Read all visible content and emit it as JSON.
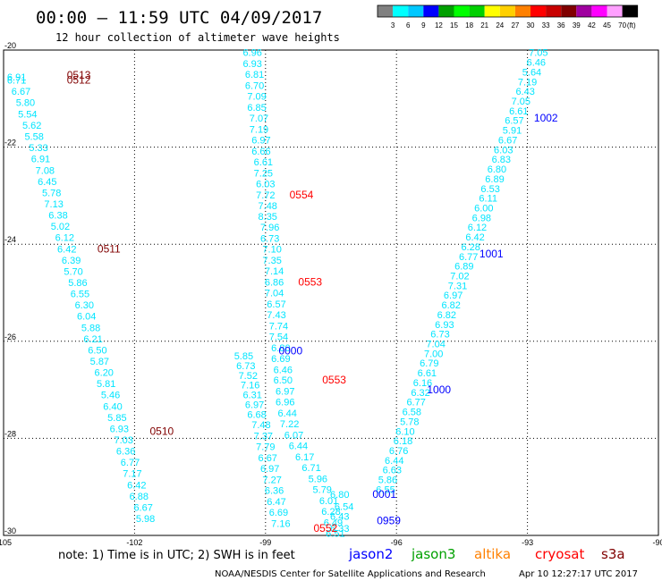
{
  "header": {
    "title": "00:00 – 11:59 UTC 04/09/2017",
    "subtitle": "12 hour collection of altimeter wave heights"
  },
  "colorbar": {
    "unit": "(ft)",
    "labels": [
      "3",
      "6",
      "9",
      "12",
      "15",
      "18",
      "21",
      "24",
      "27",
      "30",
      "33",
      "36",
      "39",
      "42",
      "45",
      "70"
    ],
    "colors": [
      "#808080",
      "#00ffff",
      "#00c8ff",
      "#0000ff",
      "#00a000",
      "#00ff00",
      "#00d000",
      "#ffff00",
      "#ffd000",
      "#ff8000",
      "#ff0000",
      "#c80000",
      "#800000",
      "#a000a0",
      "#ff00ff",
      "#ffa0ff",
      "#000000"
    ]
  },
  "footer": {
    "note": "note:  1) Time is in UTC;  2) SWH is in feet",
    "missions": [
      {
        "name": "jason2",
        "color": "#0000ff"
      },
      {
        "name": "jason3",
        "color": "#00a000"
      },
      {
        "name": "altika",
        "color": "#ff8000"
      },
      {
        "name": "cryosat",
        "color": "#ff0000"
      },
      {
        "name": "s3a",
        "color": "#800000"
      }
    ],
    "credit": "NOAA/NESDIS Center for Satellite Applications and Research",
    "timestamp": "Apr 10 12:27:17 UTC 2017"
  },
  "chart_data": {
    "type": "scatter",
    "xlim": [
      -105,
      -90
    ],
    "ylim": [
      -30,
      -20
    ],
    "xticks": [
      "-105",
      "-102",
      "-99",
      "-96",
      "-93",
      "-90"
    ],
    "yticks": [
      "-20",
      "-22",
      "-24",
      "-26",
      "-28",
      "-30"
    ],
    "grid": true,
    "point_color": "#00e5ff",
    "tracks": [
      {
        "points": [
          {
            "x": -104.7,
            "y": -20.55,
            "v": "6.91"
          },
          {
            "x": -104.7,
            "y": -20.62,
            "v": "6.71"
          },
          {
            "x": -104.6,
            "y": -20.85,
            "v": "6.67"
          },
          {
            "x": -104.5,
            "y": -21.08,
            "v": "5.80"
          },
          {
            "x": -104.45,
            "y": -21.32,
            "v": "5.54"
          },
          {
            "x": -104.35,
            "y": -21.55,
            "v": "5.62"
          },
          {
            "x": -104.3,
            "y": -21.78,
            "v": "5.58"
          },
          {
            "x": -104.2,
            "y": -22.01,
            "v": "5.33"
          },
          {
            "x": -104.15,
            "y": -22.24,
            "v": "6.91"
          },
          {
            "x": -104.05,
            "y": -22.48,
            "v": "7.08"
          },
          {
            "x": -104.0,
            "y": -22.71,
            "v": "6.45"
          },
          {
            "x": -103.9,
            "y": -22.94,
            "v": "5.78"
          },
          {
            "x": -103.85,
            "y": -23.17,
            "v": "7.13"
          },
          {
            "x": -103.75,
            "y": -23.4,
            "v": "6.38"
          },
          {
            "x": -103.7,
            "y": -23.63,
            "v": "5.02"
          },
          {
            "x": -103.6,
            "y": -23.86,
            "v": "6.12"
          },
          {
            "x": -103.55,
            "y": -24.1,
            "v": "6.42"
          },
          {
            "x": -103.45,
            "y": -24.33,
            "v": "6.39"
          },
          {
            "x": -103.4,
            "y": -24.56,
            "v": "5.70"
          },
          {
            "x": -103.3,
            "y": -24.79,
            "v": "5.86"
          },
          {
            "x": -103.25,
            "y": -25.02,
            "v": "6.55"
          },
          {
            "x": -103.15,
            "y": -25.25,
            "v": "6.30"
          },
          {
            "x": -103.1,
            "y": -25.48,
            "v": "6.04"
          },
          {
            "x": -103.0,
            "y": -25.72,
            "v": "5.88"
          },
          {
            "x": -102.95,
            "y": -25.95,
            "v": "6.21"
          },
          {
            "x": -102.85,
            "y": -26.18,
            "v": "6.50"
          },
          {
            "x": -102.8,
            "y": -26.41,
            "v": "5.87"
          },
          {
            "x": -102.7,
            "y": -26.64,
            "v": "6.20"
          },
          {
            "x": -102.65,
            "y": -26.87,
            "v": "5.81"
          },
          {
            "x": -102.55,
            "y": -27.1,
            "v": "5.46"
          },
          {
            "x": -102.5,
            "y": -27.34,
            "v": "6.40"
          },
          {
            "x": -102.4,
            "y": -27.57,
            "v": "5.85"
          },
          {
            "x": -102.35,
            "y": -27.8,
            "v": "6.93"
          },
          {
            "x": -102.25,
            "y": -28.03,
            "v": "7.03"
          },
          {
            "x": -102.2,
            "y": -28.26,
            "v": "6.36"
          },
          {
            "x": -102.1,
            "y": -28.49,
            "v": "6.77"
          },
          {
            "x": -102.05,
            "y": -28.72,
            "v": "7.17"
          },
          {
            "x": -101.95,
            "y": -28.96,
            "v": "6.42"
          },
          {
            "x": -101.9,
            "y": -29.19,
            "v": "6.88"
          },
          {
            "x": -101.8,
            "y": -29.42,
            "v": "6.67"
          },
          {
            "x": -101.75,
            "y": -29.65,
            "v": "5.98"
          }
        ],
        "time_labels": [
          {
            "x": -103.55,
            "y": -20.52,
            "t": "0513",
            "color": "#800000"
          },
          {
            "x": -103.55,
            "y": -20.62,
            "t": "0512",
            "color": "#800000"
          },
          {
            "x": -102.85,
            "y": -24.1,
            "t": "0511",
            "color": "#800000"
          },
          {
            "x": -101.65,
            "y": -27.85,
            "t": "0510",
            "color": "#800000"
          }
        ]
      },
      {
        "points": [
          {
            "x": -99.3,
            "y": -20.05,
            "v": "6.96"
          },
          {
            "x": -99.3,
            "y": -20.28,
            "v": "6.93"
          },
          {
            "x": -99.25,
            "y": -20.5,
            "v": "6.81"
          },
          {
            "x": -99.25,
            "y": -20.73,
            "v": "6.70"
          },
          {
            "x": -99.2,
            "y": -20.95,
            "v": "7.09"
          },
          {
            "x": -99.2,
            "y": -21.18,
            "v": "6.85"
          },
          {
            "x": -99.15,
            "y": -21.4,
            "v": "7.07"
          },
          {
            "x": -99.15,
            "y": -21.63,
            "v": "7.19"
          },
          {
            "x": -99.1,
            "y": -21.85,
            "v": "6.97"
          },
          {
            "x": -99.1,
            "y": -22.08,
            "v": "6.66"
          },
          {
            "x": -99.05,
            "y": -22.3,
            "v": "6.61"
          },
          {
            "x": -99.05,
            "y": -22.53,
            "v": "7.25"
          },
          {
            "x": -99.0,
            "y": -22.75,
            "v": "6.03"
          },
          {
            "x": -99.0,
            "y": -22.98,
            "v": "7.72"
          },
          {
            "x": -98.95,
            "y": -23.2,
            "v": "7.48"
          },
          {
            "x": -98.95,
            "y": -23.43,
            "v": "8.35"
          },
          {
            "x": -98.9,
            "y": -23.65,
            "v": "7.96"
          },
          {
            "x": -98.9,
            "y": -23.88,
            "v": "6.73"
          },
          {
            "x": -98.85,
            "y": -24.1,
            "v": "7.10"
          },
          {
            "x": -98.85,
            "y": -24.33,
            "v": "7.35"
          },
          {
            "x": -98.8,
            "y": -24.55,
            "v": "7.14"
          },
          {
            "x": -98.8,
            "y": -24.78,
            "v": "6.86"
          },
          {
            "x": -98.8,
            "y": -25.0,
            "v": "7.04"
          },
          {
            "x": -98.75,
            "y": -25.23,
            "v": "6.57"
          },
          {
            "x": -98.75,
            "y": -25.45,
            "v": "7.43"
          },
          {
            "x": -98.7,
            "y": -25.68,
            "v": "7.74"
          },
          {
            "x": -98.7,
            "y": -25.9,
            "v": "7.54"
          },
          {
            "x": -98.65,
            "y": -26.13,
            "v": "6.80"
          },
          {
            "x": -98.65,
            "y": -26.35,
            "v": "6.69"
          },
          {
            "x": -98.6,
            "y": -26.58,
            "v": "6.46"
          },
          {
            "x": -98.6,
            "y": -26.8,
            "v": "6.50"
          },
          {
            "x": -98.55,
            "y": -27.03,
            "v": "6.97"
          },
          {
            "x": -98.55,
            "y": -27.25,
            "v": "6.96"
          },
          {
            "x": -98.5,
            "y": -27.48,
            "v": "6.44"
          },
          {
            "x": -98.45,
            "y": -27.7,
            "v": "7.22"
          },
          {
            "x": -98.35,
            "y": -27.93,
            "v": "6.07"
          },
          {
            "x": -98.25,
            "y": -28.15,
            "v": "6.44"
          },
          {
            "x": -98.1,
            "y": -28.38,
            "v": "6.17"
          },
          {
            "x": -97.95,
            "y": -28.6,
            "v": "6.71"
          },
          {
            "x": -97.8,
            "y": -28.83,
            "v": "5.96"
          },
          {
            "x": -97.7,
            "y": -29.05,
            "v": "5.79"
          },
          {
            "x": -97.55,
            "y": -29.28,
            "v": "6.01"
          },
          {
            "x": -97.5,
            "y": -29.5,
            "v": "6.28"
          },
          {
            "x": -97.45,
            "y": -29.73,
            "v": "6.49"
          },
          {
            "x": -97.4,
            "y": -29.95,
            "v": "6.51"
          }
        ],
        "time_labels": [
          {
            "x": -98.45,
            "y": -22.98,
            "t": "0554",
            "color": "#ff0000"
          },
          {
            "x": -98.25,
            "y": -24.78,
            "t": "0553",
            "color": "#ff0000"
          },
          {
            "x": -97.7,
            "y": -26.8,
            "t": "0553",
            "color": "#ff0000"
          },
          {
            "x": -97.9,
            "y": -29.85,
            "t": "0552",
            "color": "#ff0000"
          }
        ]
      },
      {
        "points": [
          {
            "x": -99.5,
            "y": -26.3,
            "v": "5.85"
          },
          {
            "x": -99.45,
            "y": -26.5,
            "v": "6.73"
          },
          {
            "x": -99.4,
            "y": -26.7,
            "v": "7.52"
          },
          {
            "x": -99.35,
            "y": -26.9,
            "v": "7.16"
          },
          {
            "x": -99.3,
            "y": -27.1,
            "v": "6.31"
          },
          {
            "x": -99.25,
            "y": -27.3,
            "v": "6.97"
          },
          {
            "x": -99.2,
            "y": -27.5,
            "v": "6.68"
          },
          {
            "x": -99.1,
            "y": -27.72,
            "v": "7.48"
          },
          {
            "x": -99.05,
            "y": -27.95,
            "v": "7.37"
          },
          {
            "x": -99.0,
            "y": -28.17,
            "v": "7.79"
          },
          {
            "x": -98.95,
            "y": -28.4,
            "v": "6.67"
          },
          {
            "x": -98.9,
            "y": -28.62,
            "v": "6.97"
          },
          {
            "x": -98.85,
            "y": -28.85,
            "v": "7.27"
          },
          {
            "x": -98.8,
            "y": -29.07,
            "v": "6.36"
          },
          {
            "x": -98.75,
            "y": -29.3,
            "v": "6.47"
          },
          {
            "x": -98.7,
            "y": -29.52,
            "v": "6.69"
          },
          {
            "x": -98.65,
            "y": -29.75,
            "v": "7.16"
          }
        ],
        "time_labels": [
          {
            "x": -98.7,
            "y": -26.2,
            "t": "0000",
            "color": "#0000ff"
          }
        ]
      },
      {
        "points": [
          {
            "x": -92.75,
            "y": -20.05,
            "v": "7.05"
          },
          {
            "x": -92.8,
            "y": -20.25,
            "v": "6.46"
          },
          {
            "x": -92.9,
            "y": -20.45,
            "v": "5.64"
          },
          {
            "x": -93.0,
            "y": -20.65,
            "v": "7.19"
          },
          {
            "x": -93.05,
            "y": -20.85,
            "v": "6.43"
          },
          {
            "x": -93.15,
            "y": -21.05,
            "v": "7.05"
          },
          {
            "x": -93.2,
            "y": -21.25,
            "v": "6.61"
          },
          {
            "x": -93.3,
            "y": -21.45,
            "v": "6.57"
          },
          {
            "x": -93.35,
            "y": -21.65,
            "v": "5.91"
          },
          {
            "x": -93.45,
            "y": -21.85,
            "v": "6.67"
          },
          {
            "x": -93.55,
            "y": -22.05,
            "v": "6.03"
          },
          {
            "x": -93.6,
            "y": -22.25,
            "v": "6.83"
          },
          {
            "x": -93.7,
            "y": -22.45,
            "v": "6.80"
          },
          {
            "x": -93.75,
            "y": -22.65,
            "v": "6.89"
          },
          {
            "x": -93.85,
            "y": -22.85,
            "v": "6.53"
          },
          {
            "x": -93.9,
            "y": -23.05,
            "v": "6.11"
          },
          {
            "x": -94.0,
            "y": -23.25,
            "v": "6.00"
          },
          {
            "x": -94.05,
            "y": -23.45,
            "v": "6.98"
          },
          {
            "x": -94.15,
            "y": -23.65,
            "v": "6.12"
          },
          {
            "x": -94.2,
            "y": -23.85,
            "v": "6.42"
          },
          {
            "x": -94.3,
            "y": -24.05,
            "v": "6.28"
          },
          {
            "x": -94.35,
            "y": -24.25,
            "v": "6.77"
          },
          {
            "x": -94.45,
            "y": -24.45,
            "v": "6.89"
          },
          {
            "x": -94.55,
            "y": -24.65,
            "v": "7.02"
          },
          {
            "x": -94.6,
            "y": -24.85,
            "v": "7.31"
          },
          {
            "x": -94.7,
            "y": -25.05,
            "v": "6.97"
          },
          {
            "x": -94.75,
            "y": -25.25,
            "v": "6.82"
          },
          {
            "x": -94.85,
            "y": -25.45,
            "v": "6.82"
          },
          {
            "x": -94.9,
            "y": -25.65,
            "v": "6.93"
          },
          {
            "x": -95.0,
            "y": -25.85,
            "v": "6.73"
          },
          {
            "x": -95.1,
            "y": -26.05,
            "v": "7.04"
          },
          {
            "x": -95.15,
            "y": -26.25,
            "v": "7.00"
          },
          {
            "x": -95.25,
            "y": -26.45,
            "v": "6.79"
          },
          {
            "x": -95.3,
            "y": -26.65,
            "v": "6.61"
          },
          {
            "x": -95.4,
            "y": -26.85,
            "v": "6.16"
          },
          {
            "x": -95.45,
            "y": -27.05,
            "v": "6.32"
          },
          {
            "x": -95.55,
            "y": -27.25,
            "v": "6.77"
          },
          {
            "x": -95.65,
            "y": -27.45,
            "v": "6.58"
          },
          {
            "x": -95.7,
            "y": -27.65,
            "v": "5.78"
          },
          {
            "x": -95.8,
            "y": -27.85,
            "v": "6.10"
          },
          {
            "x": -95.85,
            "y": -28.05,
            "v": "6.18"
          },
          {
            "x": -95.95,
            "y": -28.25,
            "v": "6.76"
          },
          {
            "x": -96.05,
            "y": -28.45,
            "v": "6.44"
          },
          {
            "x": -96.1,
            "y": -28.65,
            "v": "6.63"
          },
          {
            "x": -96.2,
            "y": -28.85,
            "v": "5.86"
          },
          {
            "x": -96.25,
            "y": -29.05,
            "v": "6.55"
          }
        ],
        "time_labels": [
          {
            "x": -92.85,
            "y": -21.4,
            "t": "1002",
            "color": "#0000ff"
          },
          {
            "x": -94.1,
            "y": -24.2,
            "t": "1001",
            "color": "#0000ff"
          },
          {
            "x": -95.3,
            "y": -27.0,
            "t": "1000",
            "color": "#0000ff"
          },
          {
            "x": -96.55,
            "y": -29.15,
            "t": "0001",
            "color": "#0000ff"
          },
          {
            "x": -96.45,
            "y": -29.7,
            "t": "0959",
            "color": "#0000ff"
          }
        ]
      },
      {
        "points": [
          {
            "x": -97.3,
            "y": -29.15,
            "v": "6.80"
          },
          {
            "x": -97.2,
            "y": -29.4,
            "v": "6.54"
          },
          {
            "x": -97.3,
            "y": -29.6,
            "v": "6.43"
          },
          {
            "x": -97.3,
            "y": -29.85,
            "v": "6.33"
          }
        ],
        "time_labels": []
      }
    ]
  }
}
